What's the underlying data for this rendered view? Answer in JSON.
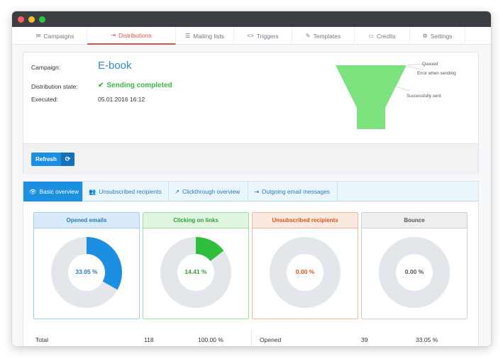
{
  "nav": {
    "tabs": [
      {
        "label": "Campaigns",
        "icon": "envelope-icon",
        "glyph": "✉"
      },
      {
        "label": "Distributions",
        "icon": "sign-out-icon",
        "glyph": "⇥"
      },
      {
        "label": "Mailing lists",
        "icon": "list-icon",
        "glyph": "☰"
      },
      {
        "label": "Triggers",
        "icon": "code-icon",
        "glyph": "<>"
      },
      {
        "label": "Templates",
        "icon": "edit-icon",
        "glyph": "✎"
      },
      {
        "label": "Credits",
        "icon": "credit-card-icon",
        "glyph": "▭"
      },
      {
        "label": "Settings",
        "icon": "gears-icon",
        "glyph": "⚙"
      }
    ],
    "active": "Distributions"
  },
  "summary": {
    "campaign_label": "Campaign:",
    "campaign_name": "E-book",
    "state_label": "Distribution state:",
    "state_value": "Sending completed",
    "executed_label": "Executed:",
    "executed_value": "05.01.2016 16:12"
  },
  "funnel": {
    "labels": [
      "Queued",
      "Error when sending",
      "Successfully sent"
    ],
    "color": "#7ee37e"
  },
  "refresh": {
    "label": "Refresh",
    "icon": "refresh-icon"
  },
  "subtabs": [
    {
      "label": "Basic overview",
      "icon": "eye-icon",
      "glyph": "👁"
    },
    {
      "label": "Unsubscribed recipients",
      "icon": "users-icon",
      "glyph": "👥"
    },
    {
      "label": "Clickthrough overview",
      "icon": "external-link-icon",
      "glyph": "↗"
    },
    {
      "label": "Outgoing email messages",
      "icon": "sign-out-icon",
      "glyph": "⇥"
    }
  ],
  "cards": [
    {
      "title": "Opened emails",
      "value": 0.3305,
      "percent_text": "33.05 %",
      "color": "#1d8fe1",
      "text_color": "#2a7ab5",
      "border": "#a8cdf0",
      "head_bg": "#d9eafc"
    },
    {
      "title": "Clicking on links",
      "value": 0.1441,
      "percent_text": "14.41 %",
      "color": "#2fbf3d",
      "text_color": "#2e9d3a",
      "border": "#9ddfa3",
      "head_bg": "#dff5df"
    },
    {
      "title": "Unsubscribed recipients",
      "value": 0.0,
      "percent_text": "0.00 %",
      "color": "#e8612c",
      "text_color": "#d9531e",
      "border": "#f2b79c",
      "head_bg": "#fbe8df"
    },
    {
      "title": "Bounce",
      "value": 0.0,
      "percent_text": "0.00 %",
      "color": "#888888",
      "text_color": "#555555",
      "border": "#cfcfcf",
      "head_bg": "#eeeeee"
    }
  ],
  "stats": {
    "left": {
      "label": "Total",
      "count": "118",
      "percent": "100.00 %"
    },
    "right": {
      "label": "Opened",
      "count": "39",
      "percent": "33.05 %"
    }
  }
}
